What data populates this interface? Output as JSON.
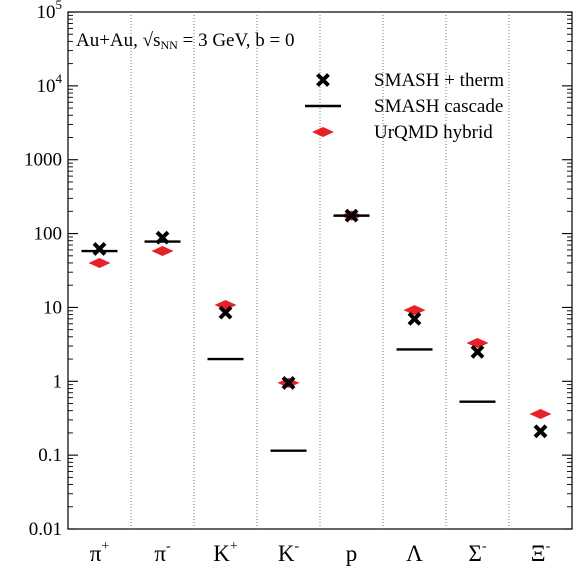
{
  "chart_data": {
    "type": "scatter",
    "title": "",
    "annotation": {
      "lead": "Au+Au, ",
      "sqrt": "√",
      "s": "s",
      "sub": "NN",
      "tail": " = 3 GeV, b = 0"
    },
    "xlabel": "",
    "ylabel": "",
    "y_scale": "log",
    "ylim": [
      0.01,
      100000
    ],
    "y_ticks": [
      {
        "value": 0.01,
        "label": "0.01",
        "base": "",
        "exp": ""
      },
      {
        "value": 0.1,
        "label": "0.1",
        "base": "",
        "exp": ""
      },
      {
        "value": 1,
        "label": "1",
        "base": "",
        "exp": ""
      },
      {
        "value": 10,
        "label": "10",
        "base": "",
        "exp": ""
      },
      {
        "value": 100,
        "label": "100",
        "base": "",
        "exp": ""
      },
      {
        "value": 1000,
        "label": "1000",
        "base": "",
        "exp": ""
      },
      {
        "value": 10000,
        "label": "",
        "base": "10",
        "exp": "4"
      },
      {
        "value": 100000,
        "label": "",
        "base": "10",
        "exp": "5"
      }
    ],
    "categories": [
      {
        "base": "π",
        "sup": "+"
      },
      {
        "base": "π",
        "sup": "-"
      },
      {
        "base": "K",
        "sup": "+"
      },
      {
        "base": "K",
        "sup": "-"
      },
      {
        "base": "p",
        "sup": ""
      },
      {
        "base": "Λ",
        "sup": ""
      },
      {
        "base": "Σ",
        "sup": "-"
      },
      {
        "base": "Ξ",
        "sup": "-"
      }
    ],
    "grid": "vertical dotted separators between categories",
    "legend_position": "top-right",
    "series": [
      {
        "name": "SMASH + therm",
        "marker": "x",
        "color": "#000000",
        "values": [
          62,
          88,
          8.5,
          0.95,
          175,
          7.0,
          2.5,
          0.21
        ]
      },
      {
        "name": "SMASH cascade",
        "marker": "hline",
        "color": "#000000",
        "values": [
          58,
          78,
          2.0,
          0.115,
          175,
          2.7,
          0.53,
          null
        ]
      },
      {
        "name": "UrQMD hybrid",
        "marker": "diamond",
        "color": "#e8202a",
        "values": [
          40,
          58,
          10.8,
          0.95,
          175,
          9.2,
          3.3,
          0.36
        ]
      }
    ]
  }
}
